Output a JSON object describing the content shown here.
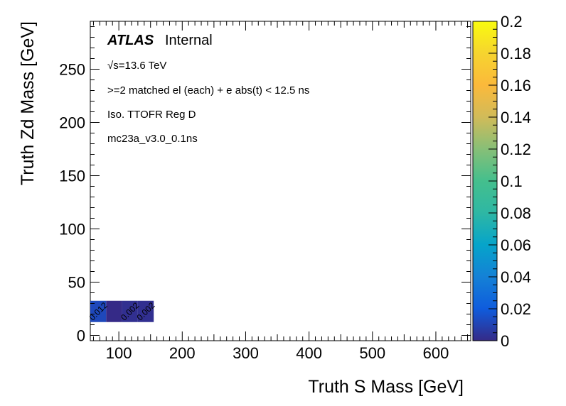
{
  "chart_data": {
    "type": "heatmap",
    "title": "",
    "xlabel": "Truth S Mass [GeV]",
    "ylabel": "Truth Zd Mass [GeV]",
    "xlim": [
      55,
      655
    ],
    "ylim": [
      -5,
      295
    ],
    "x_ticks": [
      100,
      200,
      300,
      400,
      500,
      600
    ],
    "y_ticks": [
      0,
      50,
      100,
      150,
      200,
      250
    ],
    "z_range": [
      0,
      0.2
    ],
    "z_ticks": [
      "0",
      "0.02",
      "0.04",
      "0.06",
      "0.08",
      "0.1",
      "0.12",
      "0.14",
      "0.16",
      "0.18",
      "0.2"
    ],
    "colormap": "viridis",
    "cells": [
      {
        "x0": 55,
        "x1": 80,
        "y0": 12.5,
        "y1": 32.5,
        "z": 0.012,
        "label": "0.012"
      },
      {
        "x0": 80,
        "x1": 105,
        "y0": 12.5,
        "y1": 32.5,
        "z": 0,
        "label": ""
      },
      {
        "x0": 105,
        "x1": 130,
        "y0": 12.5,
        "y1": 32.5,
        "z": 0.002,
        "label": "0.002"
      },
      {
        "x0": 130,
        "x1": 155,
        "y0": 12.5,
        "y1": 32.5,
        "z": 0.002,
        "label": "0.002"
      }
    ],
    "grid": false
  },
  "annotations": {
    "atlas": "ATLAS",
    "internal": "Internal",
    "sqrt_s": "√s=13.6 TeV",
    "selection": ">=2 matched el (each) + e abs(t) < 12.5 ns",
    "region": "Iso. TTOFR Reg D",
    "sample": "mc23a_v3.0_0.1ns"
  }
}
